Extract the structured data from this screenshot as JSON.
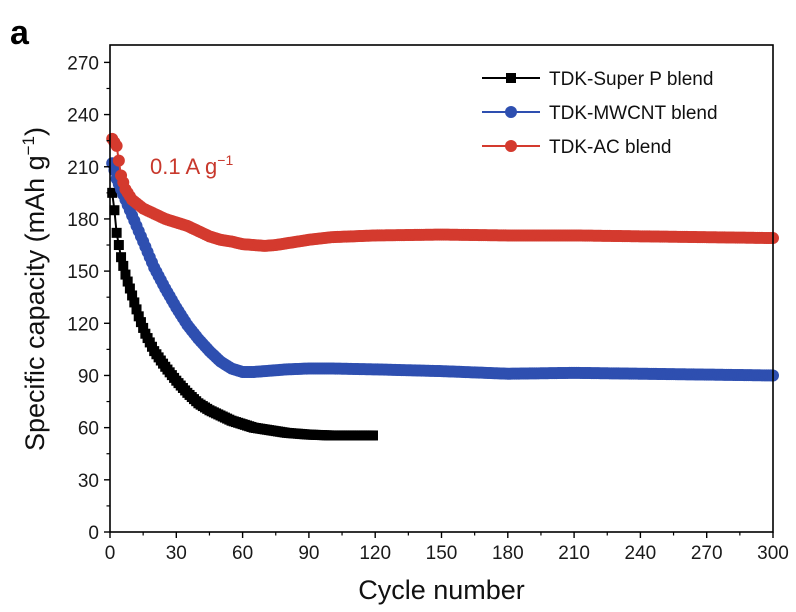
{
  "panel_label": "a",
  "annotation": {
    "text": "0.1 A g",
    "sup": "−1",
    "color": "#c8382c"
  },
  "colors": {
    "super_p": "#000000",
    "mwcnt": "#2e4fb0",
    "ac": "#d43a2e"
  },
  "chart_data": {
    "type": "line",
    "markers": true,
    "title": "",
    "xlabel": "Cycle number",
    "ylabel": {
      "text": "Specific capacity (mAh g",
      "sup": "−1",
      "suffix": ")"
    },
    "xlim": [
      0,
      300
    ],
    "ylim": [
      0,
      280
    ],
    "xticks": [
      0,
      30,
      60,
      90,
      120,
      150,
      180,
      210,
      240,
      270,
      300
    ],
    "yticks": [
      0,
      30,
      60,
      90,
      120,
      150,
      180,
      210,
      240,
      270
    ],
    "grid": false,
    "legend_position": "top-right",
    "series": [
      {
        "name": "TDK-Super P blend",
        "marker": "square",
        "color": "#000000",
        "points": [
          [
            1,
            195
          ],
          [
            2,
            185
          ],
          [
            3,
            172
          ],
          [
            5,
            158
          ],
          [
            7,
            148
          ],
          [
            10,
            136
          ],
          [
            13,
            124
          ],
          [
            16,
            114
          ],
          [
            20,
            104
          ],
          [
            25,
            95
          ],
          [
            30,
            87
          ],
          [
            35,
            80
          ],
          [
            40,
            74
          ],
          [
            45,
            70
          ],
          [
            50,
            67
          ],
          [
            55,
            64
          ],
          [
            60,
            62
          ],
          [
            65,
            60
          ],
          [
            70,
            59
          ],
          [
            75,
            58
          ],
          [
            80,
            57
          ],
          [
            90,
            56
          ],
          [
            100,
            55.5
          ],
          [
            110,
            55.5
          ],
          [
            119,
            55.5
          ]
        ]
      },
      {
        "name": "TDK-MWCNT blend",
        "marker": "circle",
        "color": "#2e4fb0",
        "points": [
          [
            1,
            212
          ],
          [
            2,
            208
          ],
          [
            3,
            203
          ],
          [
            5,
            197
          ],
          [
            8,
            188
          ],
          [
            10,
            182
          ],
          [
            15,
            167
          ],
          [
            20,
            152
          ],
          [
            25,
            140
          ],
          [
            30,
            129
          ],
          [
            35,
            119
          ],
          [
            40,
            111
          ],
          [
            45,
            104
          ],
          [
            50,
            98
          ],
          [
            55,
            94
          ],
          [
            60,
            92
          ],
          [
            65,
            92
          ],
          [
            70,
            92.5
          ],
          [
            80,
            93.5
          ],
          [
            90,
            94
          ],
          [
            100,
            94
          ],
          [
            120,
            93.5
          ],
          [
            150,
            92.5
          ],
          [
            180,
            91
          ],
          [
            210,
            91.5
          ],
          [
            240,
            91
          ],
          [
            270,
            90.5
          ],
          [
            300,
            90
          ]
        ]
      },
      {
        "name": "TDK-AC blend",
        "marker": "circle",
        "color": "#d43a2e",
        "points": [
          [
            1,
            226
          ],
          [
            2,
            224
          ],
          [
            3,
            222
          ],
          [
            5,
            205
          ],
          [
            7,
            197
          ],
          [
            10,
            191
          ],
          [
            15,
            186
          ],
          [
            20,
            183
          ],
          [
            25,
            180
          ],
          [
            30,
            178
          ],
          [
            35,
            176
          ],
          [
            40,
            173
          ],
          [
            45,
            170
          ],
          [
            50,
            168
          ],
          [
            55,
            167
          ],
          [
            60,
            165.5
          ],
          [
            65,
            165
          ],
          [
            70,
            164.5
          ],
          [
            75,
            165
          ],
          [
            80,
            166
          ],
          [
            90,
            168
          ],
          [
            100,
            169.5
          ],
          [
            120,
            170.5
          ],
          [
            150,
            171
          ],
          [
            180,
            170.5
          ],
          [
            210,
            170.5
          ],
          [
            240,
            170
          ],
          [
            270,
            169.5
          ],
          [
            300,
            169
          ]
        ]
      }
    ]
  }
}
